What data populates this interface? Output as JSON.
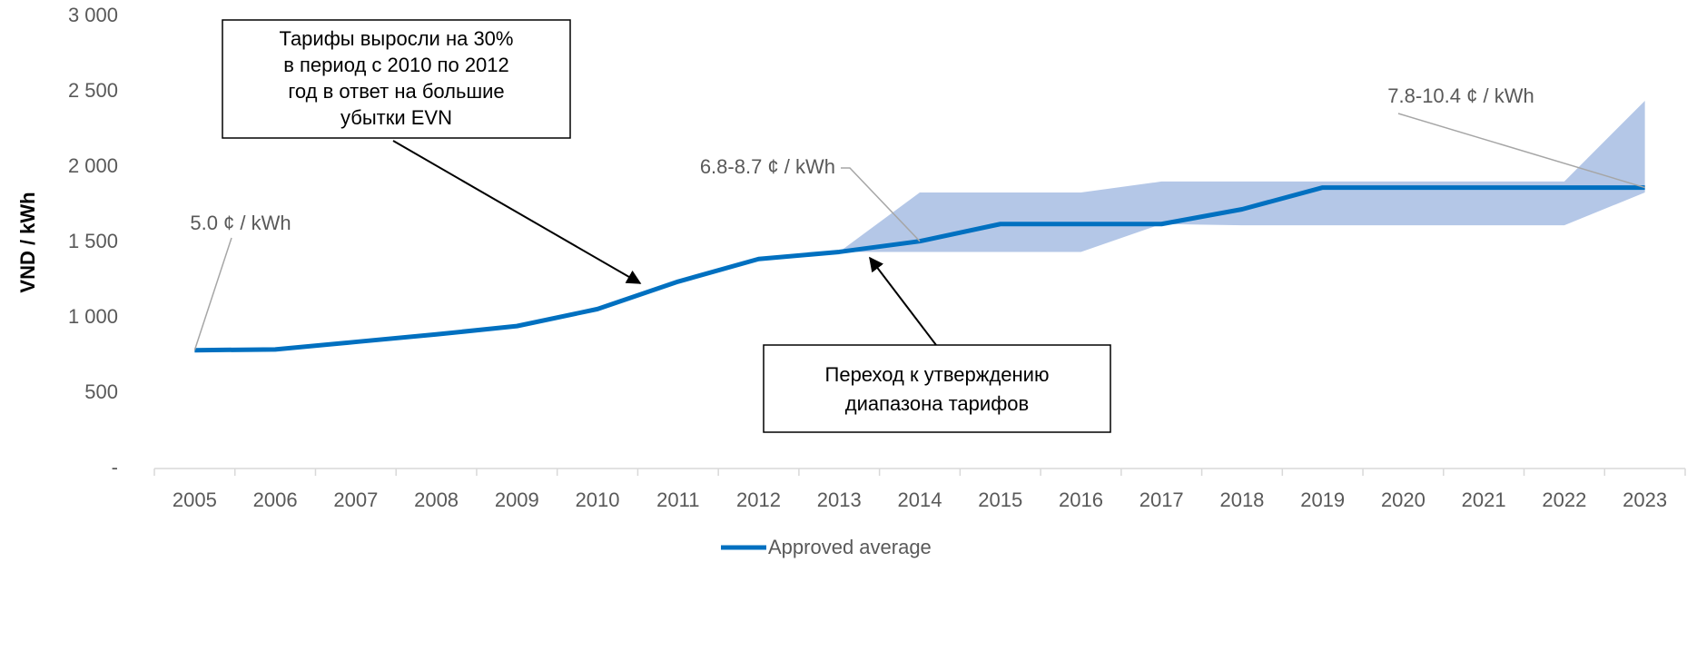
{
  "chart_data": {
    "type": "line",
    "y_label": "VND / kWh",
    "categories": [
      "2005",
      "2006",
      "2007",
      "2008",
      "2009",
      "2010",
      "2011",
      "2012",
      "2013",
      "2014",
      "2015",
      "2016",
      "2017",
      "2018",
      "2019",
      "2020",
      "2021",
      "2022",
      "2023"
    ],
    "series": [
      {
        "name": "Approved average",
        "color": "#0070c0",
        "values": [
          785,
          790,
          840,
          890,
          945,
          1058,
          1240,
          1390,
          1437,
          1508,
          1622,
          1622,
          1622,
          1720,
          1864,
          1864,
          1864,
          1864,
          1864
        ]
      }
    ],
    "band": {
      "color": "#b4c7e7",
      "lower": [
        null,
        null,
        null,
        null,
        null,
        null,
        null,
        null,
        1437,
        1437,
        1437,
        1437,
        1622,
        1614,
        1614,
        1614,
        1614,
        1614,
        1831
      ],
      "upper": [
        null,
        null,
        null,
        null,
        null,
        null,
        null,
        null,
        1437,
        1831,
        1831,
        1831,
        1904,
        1904,
        1904,
        1904,
        1904,
        1904,
        2440
      ]
    },
    "ylim": [
      0,
      3000
    ],
    "yticks": [
      {
        "value": 0,
        "label": "-"
      },
      500,
      {
        "value": 1000,
        "label": "1 000"
      },
      {
        "value": 1500,
        "label": "1 500"
      },
      {
        "value": 2000,
        "label": "2 000"
      },
      {
        "value": 2500,
        "label": "2 500"
      },
      {
        "value": 3000,
        "label": "3 000"
      }
    ],
    "grid": false,
    "legend": "bottom",
    "annotations": {
      "box_top": [
        "Тарифы выросли на 30%",
        "в период с 2010 по 2012",
        "год в ответ на большие",
        "убытки EVN"
      ],
      "box_bottom": [
        "Переход к утверждению",
        "диапазона тарифов"
      ],
      "label_start": "5.0 ¢ / kWh",
      "label_mid": "6.8-8.7 ¢ / kWh",
      "label_end": "7.8-10.4 ¢ / kWh"
    }
  }
}
